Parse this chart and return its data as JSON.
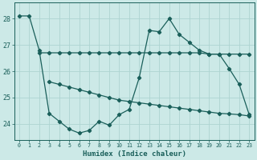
{
  "title": "",
  "xlabel": "Humidex (Indice chaleur)",
  "xlim": [
    -0.5,
    23.5
  ],
  "ylim": [
    23.4,
    28.6
  ],
  "yticks": [
    24,
    25,
    26,
    27,
    28
  ],
  "xticks": [
    0,
    1,
    2,
    3,
    4,
    5,
    6,
    7,
    8,
    9,
    10,
    11,
    12,
    13,
    14,
    15,
    16,
    17,
    18,
    19,
    20,
    21,
    22,
    23
  ],
  "bg_color": "#cce9e7",
  "line_color": "#1a5f5a",
  "grid_color": "#aed4d1",
  "series1_x": [
    2,
    3,
    4,
    5,
    6,
    7,
    8,
    9,
    10,
    11,
    12,
    13,
    14,
    15,
    16,
    17,
    18,
    19,
    20,
    21,
    22,
    23
  ],
  "series1_y": [
    26.7,
    26.7,
    26.7,
    26.7,
    26.7,
    26.7,
    26.7,
    26.7,
    26.7,
    26.7,
    26.7,
    26.7,
    26.7,
    26.7,
    26.7,
    26.7,
    26.7,
    26.65,
    26.65,
    26.65,
    26.65,
    26.65
  ],
  "series2_x": [
    3,
    4,
    5,
    6,
    7,
    8,
    9,
    10,
    11,
    12,
    13,
    14,
    15,
    16,
    17,
    18,
    19,
    20,
    21,
    22,
    23
  ],
  "series2_y": [
    25.6,
    25.5,
    25.4,
    25.3,
    25.2,
    25.1,
    25.0,
    24.9,
    24.85,
    24.8,
    24.75,
    24.7,
    24.65,
    24.6,
    24.55,
    24.5,
    24.45,
    24.4,
    24.38,
    24.35,
    24.3
  ],
  "series3_x": [
    0,
    1,
    2,
    3,
    4,
    5,
    6,
    7,
    8,
    9,
    10,
    11,
    12,
    13,
    14,
    15,
    16,
    17,
    18,
    19,
    20,
    21,
    22,
    23
  ],
  "series3_y": [
    28.1,
    28.1,
    26.8,
    24.4,
    24.1,
    23.8,
    23.65,
    23.75,
    24.1,
    23.95,
    24.35,
    24.55,
    25.75,
    27.55,
    27.5,
    28.0,
    27.4,
    27.1,
    26.8,
    26.65,
    26.65,
    26.1,
    25.5,
    24.35
  ]
}
